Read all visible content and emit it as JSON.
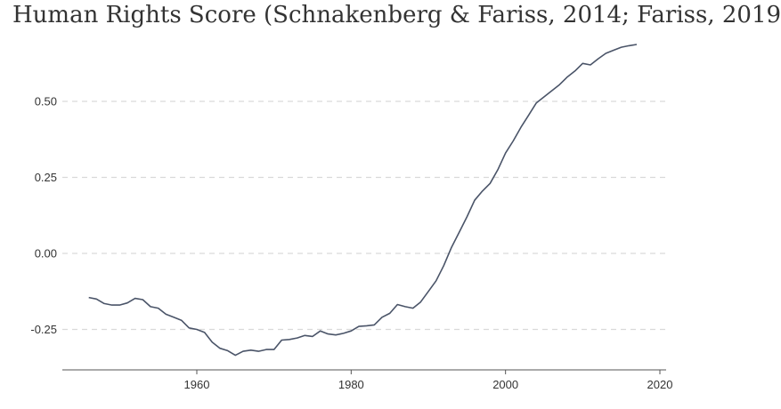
{
  "chart_data": {
    "type": "line",
    "title": "Human Rights Score (Schnakenberg & Fariss, 2014; Fariss, 2019",
    "xlabel": "",
    "ylabel": "",
    "xlim": [
      1940,
      2020
    ],
    "ylim": [
      -0.38,
      0.7
    ],
    "x_ticks": [
      1960,
      1980,
      2000,
      2020
    ],
    "x_tick_labels": [
      "1960",
      "1980",
      "2000",
      "2020"
    ],
    "y_ticks": [
      0.5,
      0.25,
      0,
      -0.25
    ],
    "y_tick_labels": [
      "0.50",
      "0.25",
      "0.00",
      "-0.25"
    ],
    "grid": "horizontal dashed",
    "legend": "none",
    "colors": {
      "line": "#4a5468",
      "grid": "#d9d9d9",
      "axis": "#555555"
    },
    "series": [
      {
        "x": [
          1946,
          1947,
          1948,
          1949,
          1950,
          1951,
          1952,
          1953,
          1954,
          1955,
          1956,
          1957,
          1958,
          1959,
          1960,
          1961,
          1962,
          1963,
          1964,
          1965,
          1966,
          1967,
          1968,
          1969,
          1970,
          1971,
          1972,
          1973,
          1974,
          1975,
          1976,
          1977,
          1978,
          1979,
          1980,
          1981,
          1982,
          1983,
          1984,
          1985,
          1986,
          1987,
          1988,
          1989,
          1990,
          1991,
          1992,
          1993,
          1994,
          1995,
          1996,
          1997,
          1998,
          1999,
          2000,
          2001,
          2002,
          2003,
          2004,
          2005,
          2006,
          2007,
          2008,
          2009,
          2010,
          2011,
          2012,
          2013,
          2014,
          2015,
          2016,
          2017
        ],
        "y": [
          -0.145,
          -0.15,
          -0.165,
          -0.17,
          -0.17,
          -0.163,
          -0.148,
          -0.152,
          -0.175,
          -0.18,
          -0.2,
          -0.21,
          -0.22,
          -0.245,
          -0.25,
          -0.26,
          -0.292,
          -0.312,
          -0.32,
          -0.335,
          -0.322,
          -0.318,
          -0.322,
          -0.316,
          -0.316,
          -0.285,
          -0.283,
          -0.278,
          -0.27,
          -0.273,
          -0.255,
          -0.265,
          -0.268,
          -0.263,
          -0.255,
          -0.24,
          -0.238,
          -0.235,
          -0.21,
          -0.197,
          -0.168,
          -0.175,
          -0.18,
          -0.16,
          -0.125,
          -0.09,
          -0.04,
          0.02,
          0.07,
          0.12,
          0.175,
          0.205,
          0.23,
          0.275,
          0.33,
          0.37,
          0.415,
          0.455,
          0.495,
          0.515,
          0.535,
          0.555,
          0.58,
          0.6,
          0.625,
          0.62,
          0.64,
          0.658,
          0.668,
          0.678,
          0.683,
          0.687
        ]
      }
    ]
  }
}
